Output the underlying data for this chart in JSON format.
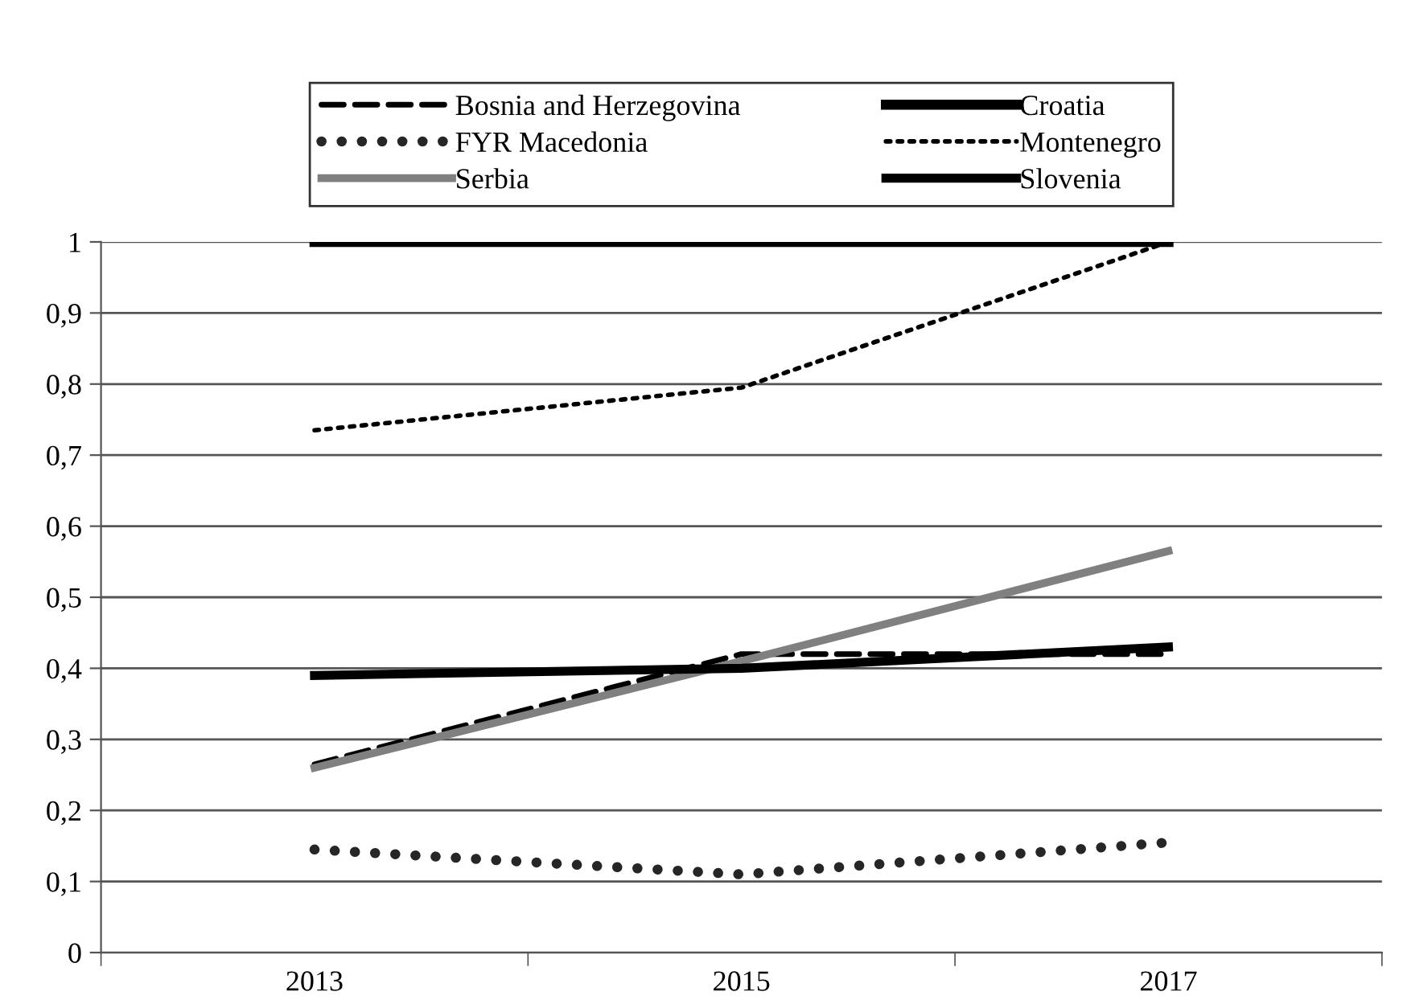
{
  "chart_data": {
    "type": "line",
    "categories": [
      "2013",
      "2015",
      "2017"
    ],
    "series": [
      {
        "name": "Bosnia and Herzegovina",
        "color": "#000000",
        "line_style": "dashed",
        "values": [
          0.265,
          0.42,
          0.42
        ]
      },
      {
        "name": "Croatia",
        "color": "#000000",
        "line_style": "solid",
        "values": [
          1,
          1,
          1
        ]
      },
      {
        "name": "FYR Macedonia",
        "color": "#262626",
        "line_style": "dotted",
        "values": [
          0.145,
          0.11,
          0.155
        ]
      },
      {
        "name": "Montenegro",
        "color": "#000000",
        "line_style": "dotted",
        "values": [
          0.735,
          0.795,
          1
        ]
      },
      {
        "name": "Serbia",
        "color": "#808080",
        "line_style": "solid",
        "values": [
          0.26,
          0.41,
          0.565
        ]
      },
      {
        "name": "Slovenia",
        "color": "#000000",
        "line_style": "solid",
        "values": [
          0.39,
          0.4,
          0.43
        ]
      }
    ],
    "ylim": [
      0,
      1
    ],
    "yticks": [
      0,
      {
        "value": 0.1,
        "label": "0,1"
      },
      {
        "value": 0.2,
        "label": "0,2"
      },
      {
        "value": 0.3,
        "label": "0,3"
      },
      {
        "value": 0.4,
        "label": "0,4"
      },
      {
        "value": 0.5,
        "label": "0,5"
      },
      {
        "value": 0.6,
        "label": "0,6"
      },
      {
        "value": 0.7,
        "label": "0,7"
      },
      {
        "value": 0.8,
        "label": "0,8"
      },
      {
        "value": 0.9,
        "label": "0,9"
      },
      1
    ],
    "grid": "y",
    "legend": "top",
    "marker": "none"
  }
}
